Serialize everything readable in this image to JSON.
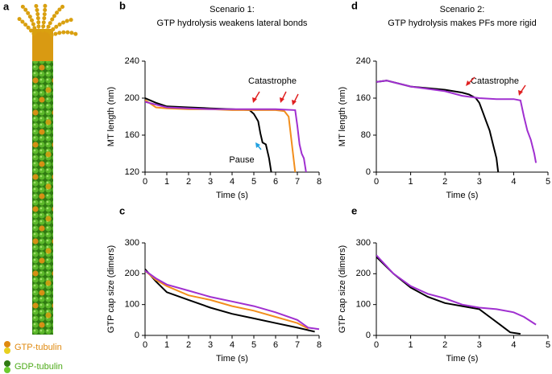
{
  "illustration": {
    "label": "a",
    "legend": [
      "GTP-tubulin",
      "GDP-tubulin"
    ]
  },
  "chart_data": [
    {
      "type": "line",
      "panel": "b",
      "title": "Scenario 1:",
      "subtitle": "GTP hydrolysis weakens lateral bonds",
      "xlabel": "Time (s)",
      "ylabel": "MT length (nm)",
      "xlim": [
        0,
        8
      ],
      "xticks": [
        0,
        1,
        2,
        3,
        4,
        5,
        6,
        7,
        8
      ],
      "ylim": [
        120,
        240
      ],
      "yticks": [
        120,
        160,
        200,
        240
      ],
      "annotations": [
        "Catastrophe",
        "Pause"
      ],
      "series": [
        {
          "color": "#000000",
          "x": [
            0,
            0.5,
            1,
            2,
            3,
            4,
            4.8,
            5.0,
            5.2,
            5.3,
            5.4,
            5.55,
            5.7,
            5.8
          ],
          "values": [
            200,
            195,
            191,
            190,
            189,
            188,
            187,
            183,
            175,
            162,
            152,
            150,
            135,
            120
          ]
        },
        {
          "color": "#f28e1c",
          "x": [
            0,
            0.5,
            1,
            2,
            3,
            4,
            5,
            6,
            6.4,
            6.6,
            6.7,
            6.8,
            6.9
          ],
          "values": [
            198,
            190,
            189,
            188,
            188,
            187,
            187,
            187,
            186,
            180,
            160,
            140,
            120
          ]
        },
        {
          "color": "#a030d0",
          "x": [
            0,
            1,
            2,
            3,
            4,
            5,
            6,
            6.9,
            7.0,
            7.1,
            7.2,
            7.3,
            7.4
          ],
          "values": [
            196,
            190,
            189,
            188,
            188,
            188,
            188,
            187,
            170,
            150,
            140,
            135,
            120
          ]
        }
      ]
    },
    {
      "type": "line",
      "panel": "c",
      "xlabel": "Time (s)",
      "ylabel": "GTP cap size (dimers)",
      "xlim": [
        0,
        8
      ],
      "xticks": [
        0,
        1,
        2,
        3,
        4,
        5,
        6,
        7,
        8
      ],
      "ylim": [
        0,
        300
      ],
      "yticks": [
        0,
        100,
        200,
        300
      ],
      "series": [
        {
          "color": "#000000",
          "x": [
            0,
            0.5,
            1,
            2,
            3,
            4,
            5,
            6,
            7,
            7.8
          ],
          "values": [
            215,
            175,
            140,
            115,
            90,
            70,
            55,
            40,
            25,
            12
          ]
        },
        {
          "color": "#f28e1c",
          "x": [
            0,
            0.5,
            1,
            2,
            3,
            4,
            5,
            6,
            7,
            7.5
          ],
          "values": [
            210,
            180,
            160,
            130,
            115,
            95,
            80,
            60,
            40,
            22
          ]
        },
        {
          "color": "#a030d0",
          "x": [
            0,
            0.5,
            1,
            2,
            3,
            4,
            5,
            6,
            7,
            7.5,
            8
          ],
          "values": [
            210,
            185,
            165,
            145,
            125,
            110,
            95,
            75,
            50,
            25,
            20
          ]
        }
      ]
    },
    {
      "type": "line",
      "panel": "d",
      "title": "Scenario 2:",
      "subtitle": "GTP hydrolysis makes PFs more rigid",
      "xlabel": "Time (s)",
      "ylabel": "MT length (nm)",
      "xlim": [
        0,
        5
      ],
      "xticks": [
        0,
        1,
        2,
        3,
        4,
        5
      ],
      "ylim": [
        0,
        240
      ],
      "yticks": [
        0,
        80,
        160,
        240
      ],
      "annotations": [
        "Catastrophe"
      ],
      "series": [
        {
          "color": "#000000",
          "x": [
            0,
            0.3,
            1,
            2,
            2.5,
            2.7,
            2.9,
            3.0,
            3.1,
            3.2,
            3.3,
            3.4,
            3.5,
            3.55
          ],
          "values": [
            195,
            198,
            185,
            178,
            172,
            168,
            160,
            150,
            130,
            110,
            90,
            60,
            30,
            0
          ]
        },
        {
          "color": "#a030d0",
          "x": [
            0,
            0.3,
            1,
            2,
            2.5,
            3,
            3.5,
            4,
            4.2,
            4.3,
            4.4,
            4.5,
            4.6,
            4.65
          ],
          "values": [
            195,
            198,
            185,
            175,
            165,
            160,
            158,
            158,
            155,
            120,
            90,
            70,
            40,
            20
          ]
        }
      ]
    },
    {
      "type": "line",
      "panel": "e",
      "xlabel": "Time (s)",
      "ylabel": "GTP cap size (dimers)",
      "xlim": [
        0,
        5
      ],
      "xticks": [
        0,
        1,
        2,
        3,
        4,
        5
      ],
      "ylim": [
        0,
        300
      ],
      "yticks": [
        0,
        100,
        200,
        300
      ],
      "series": [
        {
          "color": "#000000",
          "x": [
            0,
            0.5,
            1,
            1.5,
            2,
            2.5,
            3,
            3.3,
            3.6,
            3.9,
            4.2
          ],
          "values": [
            255,
            200,
            155,
            125,
            105,
            95,
            85,
            60,
            35,
            10,
            5
          ]
        },
        {
          "color": "#a030d0",
          "x": [
            0,
            0.5,
            1,
            1.5,
            2,
            2.5,
            3,
            3.5,
            4,
            4.3,
            4.65
          ],
          "values": [
            260,
            200,
            160,
            135,
            120,
            100,
            90,
            85,
            75,
            60,
            35
          ]
        }
      ]
    }
  ]
}
